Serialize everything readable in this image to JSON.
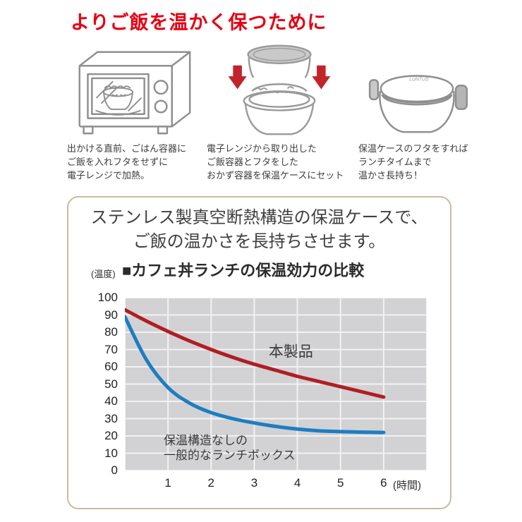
{
  "page_title": "よりご飯を温かく保つために",
  "colors": {
    "title_red": "#e60012",
    "box_border": "#cbbc9f",
    "text_dark": "#3c3c3c",
    "illustration_gray": "#8f8f8f",
    "arrow_red": "#c2242b"
  },
  "steps": [
    {
      "icon": "microwave-icon",
      "lines": [
        "出かける直前、ごはん容器に",
        "ご飯を入れフタをせずに",
        "電子レンジで加熱。"
      ]
    },
    {
      "icon": "stacked-containers-icon",
      "lines": [
        "電子レンジから取り出した",
        "ご飯容器とフタをした",
        "おかず容器を保温ケースにセット"
      ]
    },
    {
      "icon": "insulated-lunch-case-icon",
      "lines": [
        "保温ケースのフタをすれば",
        "ランチタイムまで",
        "温かさ長持ち！"
      ]
    }
  ],
  "info_box": {
    "heading_lines": [
      "ステンレス製真空断熱構造の保温ケースで、",
      "ご飯の温かさを長持ちさせます。"
    ]
  },
  "chart_data": {
    "type": "line",
    "title": "■カフェ丼ランチの保温効力の比較",
    "y_axis_label": "(温度)",
    "x_axis_label": "(時間)",
    "xlim": [
      0,
      7
    ],
    "ylim": [
      0,
      100
    ],
    "x_ticks": [
      1,
      2,
      3,
      4,
      5,
      6
    ],
    "y_ticks": [
      100,
      90,
      80,
      70,
      60,
      50,
      40,
      30,
      20,
      10,
      0
    ],
    "x_gridlines": [
      0,
      1,
      2,
      3,
      4,
      5,
      6,
      7
    ],
    "grid": true,
    "plot_bg": "#d2d2d4",
    "grid_color": "#f2f2f2",
    "series": [
      {
        "id": "this-product",
        "name": "本製品",
        "color": "#b01e23",
        "x": [
          0,
          0.5,
          1,
          1.5,
          2,
          2.5,
          3,
          3.5,
          4,
          4.5,
          5,
          5.5,
          6
        ],
        "values": [
          93,
          86.5,
          80.5,
          75,
          70,
          65.5,
          61.5,
          58,
          54.5,
          51.5,
          48.5,
          45.5,
          42.5
        ]
      },
      {
        "id": "regular-lunch-box",
        "name": "保温構造なしの一般的なランチボックス",
        "color": "#1d7dc2",
        "x": [
          0,
          0.5,
          1,
          1.5,
          2,
          2.5,
          3,
          3.5,
          4,
          4.5,
          5,
          5.5,
          6
        ],
        "values": [
          89,
          64,
          48,
          39,
          33.5,
          30,
          27.5,
          25.5,
          24,
          23,
          22.5,
          22.2,
          22
        ]
      }
    ],
    "annotations": [
      {
        "series": "this-product",
        "lines": [
          "本製品"
        ],
        "t": 3.85,
        "v": 68.5,
        "anchor": "center",
        "font_size": 21
      },
      {
        "series": "regular-lunch-box",
        "lines": [
          "保温構造なしの",
          "一般的なランチボックス"
        ],
        "t": 0.9,
        "v": 21.8,
        "anchor": "top-left",
        "font_size": 17
      }
    ]
  }
}
